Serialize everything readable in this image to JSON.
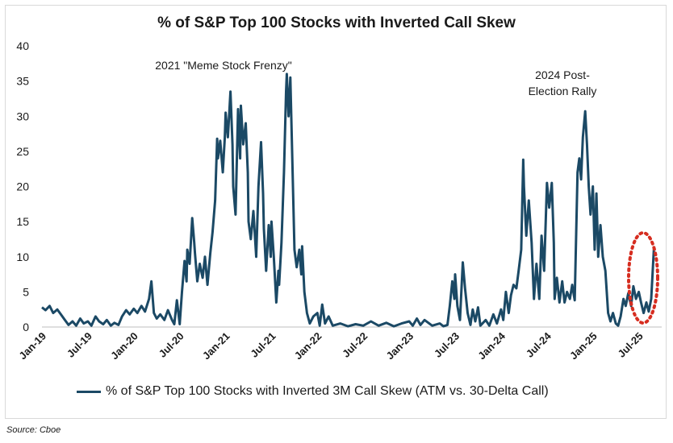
{
  "chart_data": {
    "type": "line",
    "title": "% of S&P Top 100 Stocks with Inverted Call Skew",
    "xlabel": "",
    "ylabel": "",
    "ylim": [
      0,
      40
    ],
    "yticks": [
      0,
      5,
      10,
      15,
      20,
      25,
      30,
      35,
      40
    ],
    "x_tick_labels": [
      "Jan-19",
      "Jul-19",
      "Jan-20",
      "Jul-20",
      "Jan-21",
      "Jul-21",
      "Jan-22",
      "Jul-22",
      "Jan-23",
      "Jul-23",
      "Jan-24",
      "Jul-24",
      "Jan-25",
      "Jul-25"
    ],
    "grid": false,
    "legend_position": "bottom",
    "series": [
      {
        "name": "% of S&P Top 100 Stocks with Inverted 3M Call Skew (ATM vs. 30-Delta Call)",
        "color": "#1b4965",
        "points": [
          [
            "2019-01",
            2.8
          ],
          [
            "2019-01-15",
            2.4
          ],
          [
            "2019-02",
            3.0
          ],
          [
            "2019-02-15",
            2.0
          ],
          [
            "2019-03",
            2.5
          ],
          [
            "2019-03-15",
            1.8
          ],
          [
            "2019-04",
            1.0
          ],
          [
            "2019-04-15",
            0.3
          ],
          [
            "2019-05",
            0.8
          ],
          [
            "2019-05-15",
            0.2
          ],
          [
            "2019-06",
            1.2
          ],
          [
            "2019-06-15",
            0.5
          ],
          [
            "2019-07",
            0.8
          ],
          [
            "2019-07-15",
            0.2
          ],
          [
            "2019-08",
            1.5
          ],
          [
            "2019-08-15",
            0.8
          ],
          [
            "2019-09",
            0.4
          ],
          [
            "2019-09-15",
            1.0
          ],
          [
            "2019-10",
            0.2
          ],
          [
            "2019-10-15",
            0.6
          ],
          [
            "2019-11",
            0.3
          ],
          [
            "2019-11-15",
            1.5
          ],
          [
            "2019-12",
            2.4
          ],
          [
            "2019-12-15",
            1.8
          ],
          [
            "2020-01",
            2.6
          ],
          [
            "2020-01-15",
            2.0
          ],
          [
            "2020-02",
            3.0
          ],
          [
            "2020-02-15",
            2.2
          ],
          [
            "2020-03",
            4.0
          ],
          [
            "2020-03-10",
            6.5
          ],
          [
            "2020-03-20",
            2.0
          ],
          [
            "2020-04",
            1.2
          ],
          [
            "2020-04-15",
            1.8
          ],
          [
            "2020-05",
            1.0
          ],
          [
            "2020-05-15",
            2.4
          ],
          [
            "2020-06",
            1.0
          ],
          [
            "2020-06-10",
            0.4
          ],
          [
            "2020-06-20",
            3.8
          ],
          [
            "2020-07",
            0.4
          ],
          [
            "2020-07-10",
            5.0
          ],
          [
            "2020-07-20",
            9.4
          ],
          [
            "2020-07-28",
            6.5
          ],
          [
            "2020-08",
            11.0
          ],
          [
            "2020-08-10",
            9.0
          ],
          [
            "2020-08-20",
            15.5
          ],
          [
            "2020-08-28",
            12.0
          ],
          [
            "2020-09",
            10.5
          ],
          [
            "2020-09-10",
            6.5
          ],
          [
            "2020-09-20",
            9.0
          ],
          [
            "2020-10",
            7.0
          ],
          [
            "2020-10-10",
            10.0
          ],
          [
            "2020-10-20",
            6.0
          ],
          [
            "2020-11",
            10.5
          ],
          [
            "2020-11-10",
            13.5
          ],
          [
            "2020-11-20",
            18.0
          ],
          [
            "2020-11-28",
            26.8
          ],
          [
            "2020-12",
            24.0
          ],
          [
            "2020-12-10",
            26.5
          ],
          [
            "2020-12-20",
            22.0
          ],
          [
            "2020-12-28",
            27.0
          ],
          [
            "2021-01",
            30.5
          ],
          [
            "2021-01-10",
            27.0
          ],
          [
            "2021-01-20",
            33.5
          ],
          [
            "2021-01-28",
            26.0
          ],
          [
            "2021-02",
            20.0
          ],
          [
            "2021-02-10",
            16.0
          ],
          [
            "2021-02-20",
            31.0
          ],
          [
            "2021-02-28",
            24.0
          ],
          [
            "2021-03",
            31.5
          ],
          [
            "2021-03-10",
            26.0
          ],
          [
            "2021-03-20",
            29.0
          ],
          [
            "2021-03-28",
            22.0
          ],
          [
            "2021-04",
            15.0
          ],
          [
            "2021-04-10",
            12.5
          ],
          [
            "2021-04-20",
            16.5
          ],
          [
            "2021-05",
            10.0
          ],
          [
            "2021-05-10",
            20.0
          ],
          [
            "2021-05-20",
            26.3
          ],
          [
            "2021-05-28",
            19.0
          ],
          [
            "2021-06",
            14.0
          ],
          [
            "2021-06-10",
            8.0
          ],
          [
            "2021-06-20",
            14.5
          ],
          [
            "2021-06-28",
            10.0
          ],
          [
            "2021-07",
            15.0
          ],
          [
            "2021-07-10",
            10.0
          ],
          [
            "2021-07-20",
            3.5
          ],
          [
            "2021-07-28",
            8.0
          ],
          [
            "2021-08",
            6.0
          ],
          [
            "2021-08-10",
            12.0
          ],
          [
            "2021-08-20",
            22.0
          ],
          [
            "2021-08-28",
            33.5
          ],
          [
            "2021-09",
            36.0
          ],
          [
            "2021-09-08",
            30.0
          ],
          [
            "2021-09-15",
            35.5
          ],
          [
            "2021-09-22",
            25.0
          ],
          [
            "2021-10",
            11.0
          ],
          [
            "2021-10-10",
            8.5
          ],
          [
            "2021-10-20",
            11.0
          ],
          [
            "2021-10-28",
            7.5
          ],
          [
            "2021-11",
            11.5
          ],
          [
            "2021-11-10",
            5.0
          ],
          [
            "2021-11-20",
            2.0
          ],
          [
            "2021-12",
            0.5
          ],
          [
            "2021-12-15",
            1.5
          ],
          [
            "2022-01",
            2.0
          ],
          [
            "2022-01-10",
            0.2
          ],
          [
            "2022-01-20",
            3.2
          ],
          [
            "2022-02",
            0.5
          ],
          [
            "2022-02-15",
            1.5
          ],
          [
            "2022-03",
            0.2
          ],
          [
            "2022-04",
            0.5
          ],
          [
            "2022-05",
            0.1
          ],
          [
            "2022-06",
            0.4
          ],
          [
            "2022-07",
            0.2
          ],
          [
            "2022-08",
            0.8
          ],
          [
            "2022-09",
            0.2
          ],
          [
            "2022-10",
            0.6
          ],
          [
            "2022-11",
            0.1
          ],
          [
            "2022-12",
            0.5
          ],
          [
            "2023-01",
            0.8
          ],
          [
            "2023-01-15",
            0.2
          ],
          [
            "2023-02",
            1.2
          ],
          [
            "2023-02-15",
            0.3
          ],
          [
            "2023-03",
            1.0
          ],
          [
            "2023-04",
            0.2
          ],
          [
            "2023-05",
            0.5
          ],
          [
            "2023-05-15",
            0.1
          ],
          [
            "2023-06",
            0.3
          ],
          [
            "2023-06-10",
            3.0
          ],
          [
            "2023-06-20",
            6.5
          ],
          [
            "2023-06-28",
            4.0
          ],
          [
            "2023-07",
            7.5
          ],
          [
            "2023-07-10",
            3.0
          ],
          [
            "2023-07-20",
            1.0
          ],
          [
            "2023-08",
            9.2
          ],
          [
            "2023-08-10",
            5.5
          ],
          [
            "2023-08-20",
            2.0
          ],
          [
            "2023-09",
            0.3
          ],
          [
            "2023-09-10",
            2.5
          ],
          [
            "2023-09-20",
            0.8
          ],
          [
            "2023-10",
            2.8
          ],
          [
            "2023-10-10",
            0.2
          ],
          [
            "2023-11",
            1.0
          ],
          [
            "2023-11-15",
            0.2
          ],
          [
            "2023-12",
            1.8
          ],
          [
            "2023-12-15",
            0.5
          ],
          [
            "2024-01",
            2.5
          ],
          [
            "2024-01-10",
            1.0
          ],
          [
            "2024-01-20",
            5.0
          ],
          [
            "2024-02",
            2.0
          ],
          [
            "2024-02-10",
            4.5
          ],
          [
            "2024-02-20",
            6.0
          ],
          [
            "2024-03",
            5.5
          ],
          [
            "2024-03-10",
            8.0
          ],
          [
            "2024-03-20",
            11.0
          ],
          [
            "2024-03-28",
            23.8
          ],
          [
            "2024-04",
            20.0
          ],
          [
            "2024-04-10",
            13.0
          ],
          [
            "2024-04-20",
            18.0
          ],
          [
            "2024-05",
            12.0
          ],
          [
            "2024-05-10",
            4.0
          ],
          [
            "2024-05-20",
            9.0
          ],
          [
            "2024-06",
            4.0
          ],
          [
            "2024-06-10",
            13.0
          ],
          [
            "2024-06-20",
            8.0
          ],
          [
            "2024-07",
            20.5
          ],
          [
            "2024-07-10",
            17.0
          ],
          [
            "2024-07-20",
            20.5
          ],
          [
            "2024-07-28",
            12.0
          ],
          [
            "2024-08",
            4.0
          ],
          [
            "2024-08-10",
            7.0
          ],
          [
            "2024-08-20",
            3.5
          ],
          [
            "2024-09",
            6.5
          ],
          [
            "2024-09-10",
            3.5
          ],
          [
            "2024-09-20",
            5.0
          ],
          [
            "2024-10",
            4.0
          ],
          [
            "2024-10-10",
            6.0
          ],
          [
            "2024-10-20",
            3.8
          ],
          [
            "2024-11",
            22.0
          ],
          [
            "2024-11-08",
            24.0
          ],
          [
            "2024-11-15",
            21.0
          ],
          [
            "2024-11-22",
            27.0
          ],
          [
            "2024-12",
            30.7
          ],
          [
            "2024-12-08",
            26.0
          ],
          [
            "2024-12-15",
            20.0
          ],
          [
            "2024-12-22",
            16.0
          ],
          [
            "2025-01",
            20.0
          ],
          [
            "2025-01-08",
            11.0
          ],
          [
            "2025-01-15",
            19.0
          ],
          [
            "2025-01-22",
            10.0
          ],
          [
            "2025-02",
            14.5
          ],
          [
            "2025-02-10",
            10.0
          ],
          [
            "2025-02-20",
            8.0
          ],
          [
            "2025-03",
            2.0
          ],
          [
            "2025-03-10",
            0.8
          ],
          [
            "2025-03-20",
            2.0
          ],
          [
            "2025-04",
            0.5
          ],
          [
            "2025-04-10",
            0.2
          ],
          [
            "2025-04-20",
            1.5
          ],
          [
            "2025-05",
            4.0
          ],
          [
            "2025-05-10",
            3.0
          ],
          [
            "2025-05-20",
            4.8
          ],
          [
            "2025-06",
            3.0
          ],
          [
            "2025-06-10",
            5.8
          ],
          [
            "2025-06-20",
            4.0
          ],
          [
            "2025-07",
            5.0
          ],
          [
            "2025-07-10",
            3.5
          ],
          [
            "2025-07-20",
            2.0
          ],
          [
            "2025-08",
            3.5
          ],
          [
            "2025-08-10",
            2.2
          ],
          [
            "2025-08-20",
            4.0
          ],
          [
            "2025-09",
            11.5
          ]
        ]
      }
    ],
    "annotations": [
      {
        "text": "2021 \"Meme Stock Frenzy\""
      },
      {
        "text_lines": [
          "2024 Post-",
          "Election Rally"
        ]
      }
    ],
    "highlight_color": "#d62d20"
  },
  "legend_text": "% of S&P Top 100 Stocks with Inverted 3M Call Skew (ATM vs. 30-Delta Call)",
  "source_text": "Source: Cboe"
}
